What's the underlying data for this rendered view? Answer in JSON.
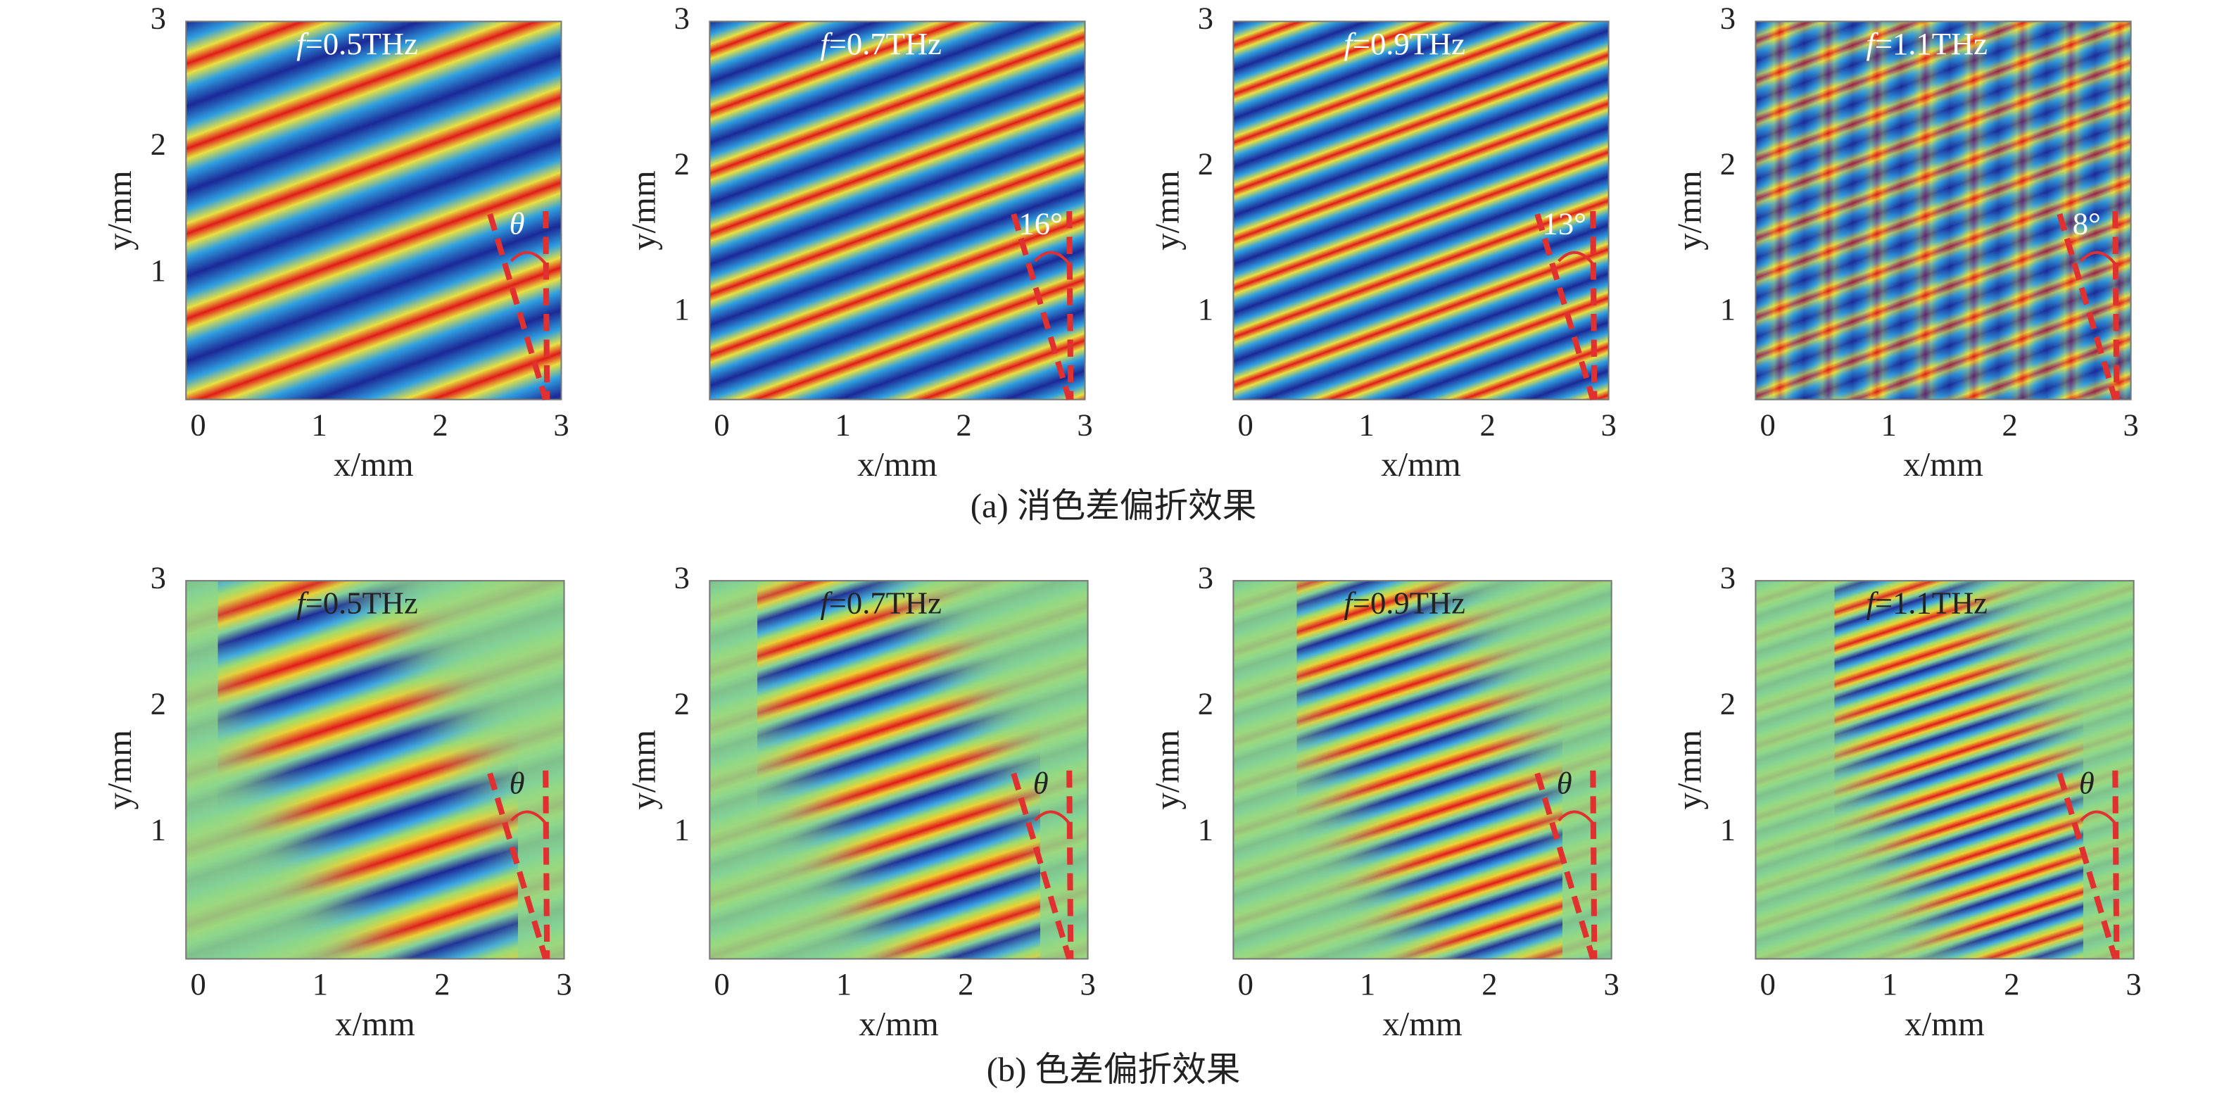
{
  "rows": [
    {
      "caption": "(a) 消色差偏折效果",
      "panels": [
        {
          "freq_symbol": "f",
          "freq": "=0.5THz",
          "angle_label": "θ",
          "xlabel": "x/mm",
          "ylabel": "y/mm",
          "xlim": [
            -0.1,
            3
          ],
          "ylim": [
            0,
            3
          ],
          "xticks": [
            0,
            1,
            2,
            3
          ],
          "yticks": [
            1,
            2,
            3
          ]
        },
        {
          "freq_symbol": "f",
          "freq": "=0.7THz",
          "angle_label": "16°",
          "xlabel": "x/mm",
          "ylabel": "y/mm",
          "xlim": [
            -0.1,
            3
          ],
          "ylim": [
            0.4,
            3
          ],
          "xticks": [
            0,
            1,
            2,
            3
          ],
          "yticks": [
            1,
            2,
            3
          ]
        },
        {
          "freq_symbol": "f",
          "freq": "=0.9THz",
          "angle_label": "13°",
          "xlabel": "x/mm",
          "ylabel": "y/mm",
          "xlim": [
            -0.1,
            3
          ],
          "ylim": [
            0.4,
            3
          ],
          "xticks": [
            0,
            1,
            2,
            3
          ],
          "yticks": [
            1,
            2,
            3
          ]
        },
        {
          "freq_symbol": "f",
          "freq": "=1.1THz",
          "angle_label": "8°",
          "xlabel": "x/mm",
          "ylabel": "y/mm",
          "xlim": [
            -0.1,
            3
          ],
          "ylim": [
            0.4,
            3
          ],
          "xticks": [
            0,
            1,
            2,
            3
          ],
          "yticks": [
            1,
            2,
            3
          ]
        }
      ]
    },
    {
      "caption": "(b) 色差偏折效果",
      "panels": [
        {
          "freq_symbol": "f",
          "freq": "=0.5THz",
          "angle_label": "θ",
          "xlabel": "x/mm",
          "ylabel": "y/mm",
          "xlim": [
            -0.1,
            3
          ],
          "ylim": [
            0,
            3
          ],
          "xticks": [
            0,
            1,
            2,
            3
          ],
          "yticks": [
            1,
            2,
            3
          ]
        },
        {
          "freq_symbol": "f",
          "freq": "=0.7THz",
          "angle_label": "θ",
          "xlabel": "x/mm",
          "ylabel": "y/mm",
          "xlim": [
            -0.1,
            3
          ],
          "ylim": [
            0,
            3
          ],
          "xticks": [
            0,
            1,
            2,
            3
          ],
          "yticks": [
            1,
            2,
            3
          ]
        },
        {
          "freq_symbol": "f",
          "freq": "=0.9THz",
          "angle_label": "θ",
          "xlabel": "x/mm",
          "ylabel": "y/mm",
          "xlim": [
            -0.1,
            3
          ],
          "ylim": [
            0,
            3
          ],
          "xticks": [
            0,
            1,
            2,
            3
          ],
          "yticks": [
            1,
            2,
            3
          ]
        },
        {
          "freq_symbol": "f",
          "freq": "=1.1THz",
          "angle_label": "θ",
          "xlabel": "x/mm",
          "ylabel": "y/mm",
          "xlim": [
            -0.1,
            3
          ],
          "ylim": [
            0,
            3
          ],
          "xticks": [
            0,
            1,
            2,
            3
          ],
          "yticks": [
            1,
            2,
            3
          ]
        }
      ]
    }
  ]
}
